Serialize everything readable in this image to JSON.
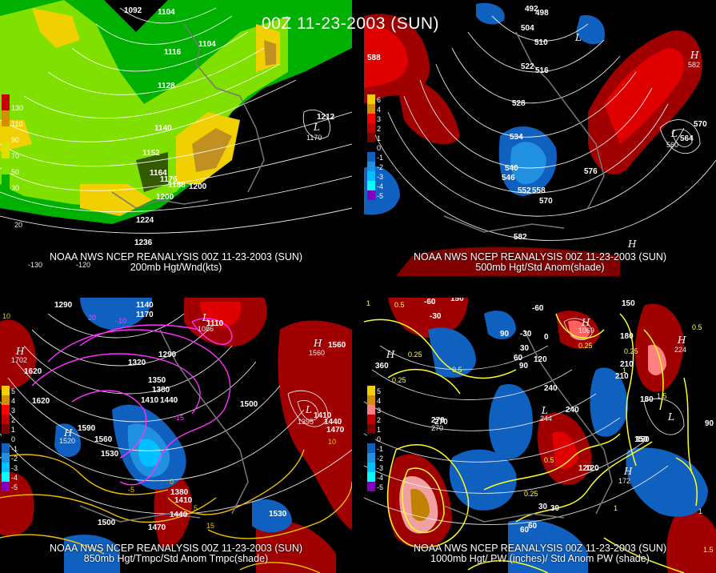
{
  "title": "00Z 11-23-2003 (SUN)",
  "panels": [
    {
      "caption_line1": "NOAA NWS NCEP REANALYSIS 00Z 11-23-2003 (SUN)",
      "caption_line2": "200mb Hgt/Wnd(kts)",
      "legend": [
        "130",
        "110",
        "90",
        "70",
        "50",
        "30"
      ],
      "legend_colors": [
        "#c80000",
        "#d29000",
        "#f0d000",
        "#e0e000",
        "#80e000",
        "#00b000"
      ],
      "height_labels": [
        "1092",
        "1104",
        "1104",
        "1116",
        "1128",
        "1140",
        "1152",
        "1164",
        "1176",
        "1188",
        "1200",
        "1212",
        "1200",
        "1224",
        "1236"
      ],
      "other_labels": [
        "20",
        "-130",
        "-120"
      ],
      "low_label": "L",
      "low_value": "1170"
    },
    {
      "caption_line1": "NOAA NWS NCEP REANALYSIS 00Z 11-23-2003 (SUN)",
      "caption_line2": "500mb Hgt/Std Anom(shade)",
      "legend": [
        "6",
        "4",
        "3",
        "2",
        "1",
        "0",
        "-1",
        "-2",
        "-3",
        "-4",
        "-5"
      ],
      "height_labels": [
        "492",
        "498",
        "504",
        "510",
        "516",
        "522",
        "528",
        "534",
        "540",
        "546",
        "552",
        "558",
        "570",
        "576",
        "582",
        "588",
        "570",
        "564"
      ],
      "high_labels": [
        "H",
        "H"
      ],
      "high_values": [
        "582"
      ],
      "low_labels": [
        "L",
        "L"
      ],
      "low_values": [
        "560"
      ]
    },
    {
      "caption_line1": "NOAA NWS NCEP REANALYSIS 00Z 11-23-2003 (SUN)",
      "caption_line2": "850mb Hgt/Tmpc/Std Anom Tmpc(shade)",
      "legend": [
        "5",
        "4",
        "3",
        "2",
        "1",
        "0",
        "-1",
        "-2",
        "-3",
        "-4",
        "-5"
      ],
      "height_labels": [
        "1290",
        "1620",
        "1140",
        "1170",
        "1110",
        "1320",
        "1350",
        "1380",
        "1410",
        "1440",
        "1500",
        "1560",
        "1590",
        "1530",
        "1500",
        "1470",
        "1440",
        "1410",
        "1380",
        "1530",
        "1470",
        "1410",
        "1440",
        "1620",
        "1560",
        "1290"
      ],
      "temp_labels": [
        "-15",
        "-10",
        "-5",
        "0",
        "5",
        "10",
        "15",
        "20",
        "10"
      ],
      "high_labels": [
        "H",
        "H",
        "H"
      ],
      "high_values": [
        "1702",
        "1560",
        "1520"
      ],
      "low_labels": [
        "L",
        "L"
      ],
      "low_values": [
        "1086",
        "1130",
        "1395"
      ]
    },
    {
      "caption_line1": "NOAA NWS NCEP REANALYSIS 00Z 11-23-2003 (SUN)",
      "caption_line2": "1000mb Hgt/ PW (inches)/ Std Anom PW (shade)",
      "legend": [
        "5",
        "4",
        "3",
        "2",
        "1",
        "0",
        "-1",
        "-2",
        "-3",
        "-4",
        "-5"
      ],
      "height_labels": [
        "-60",
        "-30",
        "150",
        "-60",
        "-30",
        "0",
        "30",
        "60",
        "90",
        "120",
        "150",
        "180",
        "210",
        "240",
        "270",
        "360",
        "30",
        "60",
        "90",
        "120",
        "150",
        "180",
        "210",
        "240",
        "270",
        "30",
        "60",
        "90",
        "150",
        "120"
      ],
      "pw_labels": [
        "0.5",
        "0.25",
        "1",
        "0.25",
        "0.5",
        "0.25",
        "0.25",
        "1",
        "1.5",
        "0.5",
        "1",
        "0.25",
        "0.5",
        "1.5",
        "1"
      ],
      "high_labels": [
        "H",
        "H",
        "H",
        "H"
      ],
      "high_values": [
        "1069",
        "224",
        "270",
        "172"
      ],
      "low_labels": [
        "L",
        "L"
      ],
      "low_values": [
        "244"
      ]
    }
  ],
  "colors": {
    "anom_pos": [
      "#ff0000",
      "#c00000",
      "#800000",
      "#ff8080",
      "#f0c0c0"
    ],
    "anom_neg": [
      "#1060c0",
      "#2090e0",
      "#00c0ff",
      "#00ffff",
      "#8000c0"
    ],
    "jet": [
      "#00b000",
      "#80e000",
      "#f0e000",
      "#d29000",
      "#c80000"
    ]
  }
}
